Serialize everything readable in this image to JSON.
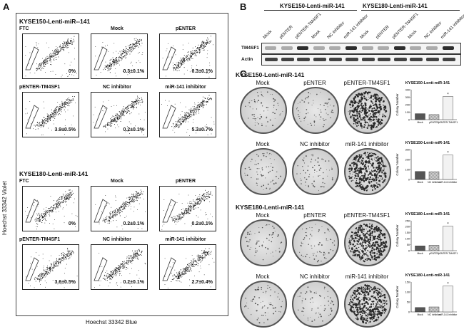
{
  "panel_labels": {
    "a": "A",
    "b": "B",
    "c": "C"
  },
  "panelA": {
    "group1_title": "KYSE150-Lenti-miR--141",
    "group2_title": "KYSE180-Lenti-miR-141",
    "y_axis_label": "Hoechst 33342 Violet",
    "x_axis_label": "Hoechst 33342 Blue",
    "group1": [
      {
        "title": "FTC",
        "pct": "0%"
      },
      {
        "title": "Mock",
        "pct": "0.3±0.1%"
      },
      {
        "title": "pENTER",
        "pct": "0.3±0.1%"
      },
      {
        "title": "pENTER-TM4SF1",
        "pct": "3.9±0.5%"
      },
      {
        "title": "NC inhibitor",
        "pct": "0.2±0.1%"
      },
      {
        "title": "miR-141 inhibitor",
        "pct": "5.3±0.7%"
      }
    ],
    "group2": [
      {
        "title": "FTC",
        "pct": "0%"
      },
      {
        "title": "Mock",
        "pct": "0.2±0.1%"
      },
      {
        "title": "pENTER",
        "pct": "0.2±0.1%"
      },
      {
        "title": "pENTER-TM4SF1",
        "pct": "3.6±0.5%"
      },
      {
        "title": "NC inhibitor",
        "pct": "0.2±0.1%"
      },
      {
        "title": "miR-141 inhibitor",
        "pct": "2.7±0.4%"
      }
    ]
  },
  "panelB": {
    "group1_title": "KYSE150-Lenti-miR-141",
    "group2_title": "KYSE180-Lenti-miR-141",
    "lanes": [
      "Mock",
      "pENTER",
      "pENTER-TM4SF1",
      "Mock",
      "NC inhibitor",
      "miR-141 inhibitor",
      "Mock",
      "pENTER",
      "pENTER-TM4SF1",
      "Mock",
      "NC inhibitor",
      "miR-141 inhibitor"
    ],
    "row1": "TM4SF1",
    "row2": "Actin"
  },
  "panelC": {
    "group1_title": "KYSE150-Lenti-miR-141",
    "group2_title": "KYSE180-Lenti-miR-141",
    "row_labels": [
      [
        "Mock",
        "pENTER",
        "pENTER-TM4SF1"
      ],
      [
        "Mock",
        "NC inhibitor",
        "miR-141 inhibitor"
      ],
      [
        "Mock",
        "pENTER",
        "pENTER-TM4SF1"
      ],
      [
        "Mock",
        "NC inhibitor",
        "miR-141 inhibitor"
      ]
    ]
  },
  "chart_data": [
    {
      "type": "bar",
      "title": "KYSE150-Lenti-miR-141",
      "ylabel": "Colony Number",
      "categories": [
        "Mock",
        "pENTER",
        "pENTER-TM4SF1"
      ],
      "values": [
        80,
        68,
        310
      ],
      "ylim": [
        0,
        400
      ],
      "yticks": [
        0,
        100,
        200,
        300,
        400
      ],
      "significance": "*"
    },
    {
      "type": "bar",
      "title": "KYSE150-Lenti-miR-141",
      "ylabel": "Colony Number",
      "categories": [
        "Mock",
        "NC inhibitor",
        "miR-141 inhibitor"
      ],
      "values": [
        80,
        78,
        245
      ],
      "ylim": [
        0,
        300
      ],
      "yticks": [
        0,
        100,
        200,
        300
      ],
      "significance": "*"
    },
    {
      "type": "bar",
      "title": "KYSE180-Lenti-miR-141",
      "ylabel": "Colony Number",
      "categories": [
        "Mock",
        "pENTER",
        "pENTER-TM4SF1"
      ],
      "values": [
        40,
        45,
        205
      ],
      "ylim": [
        0,
        250
      ],
      "yticks": [
        0,
        50,
        100,
        150,
        200,
        250
      ],
      "significance": "*"
    },
    {
      "type": "bar",
      "title": "KYSE180-Lenti-miR-141",
      "ylabel": "Colony Number",
      "categories": [
        "Mock",
        "NC inhibitor",
        "miR-141 inhibitor"
      ],
      "values": [
        22,
        25,
        130
      ],
      "ylim": [
        0,
        150
      ],
      "yticks": [
        0,
        50,
        100,
        150
      ],
      "significance": "*"
    }
  ]
}
